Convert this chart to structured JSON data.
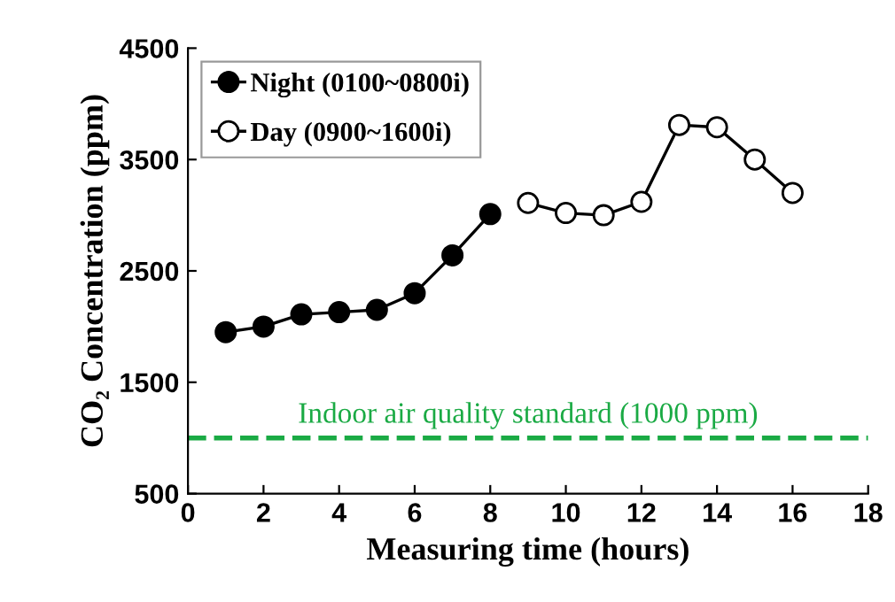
{
  "chart_data": {
    "type": "line",
    "xlabel": "Measuring time (hours)",
    "ylabel": "CO₂ Concentration (ppm)",
    "xlim": [
      0,
      18
    ],
    "xticks": [
      0,
      2,
      4,
      6,
      8,
      10,
      12,
      14,
      16,
      18
    ],
    "ylim": [
      500,
      4500
    ],
    "yticks": [
      500,
      1500,
      2500,
      3500,
      4500
    ],
    "grid": false,
    "legend": "top left",
    "marker": "circle",
    "line_style": "solid",
    "series": [
      {
        "name": "Night (0100~0800i)",
        "color": "#000000",
        "x": [
          1,
          2,
          3,
          4,
          5,
          6,
          7,
          8
        ],
        "values": [
          1950,
          2000,
          2110,
          2130,
          2150,
          2300,
          2640,
          3010
        ]
      },
      {
        "name": "Day (0900~1600i)",
        "color": "#ffffff",
        "x": [
          9,
          10,
          11,
          12,
          13,
          14,
          15,
          16
        ],
        "values": [
          3110,
          3020,
          3000,
          3120,
          3810,
          3790,
          3500,
          3200
        ]
      }
    ],
    "ref_lines": [
      {
        "axis": "y",
        "value": 1000,
        "label": "Indoor air quality standard (1000 ppm)",
        "color": "#1aaa44",
        "line_style": "dashed"
      }
    ]
  }
}
